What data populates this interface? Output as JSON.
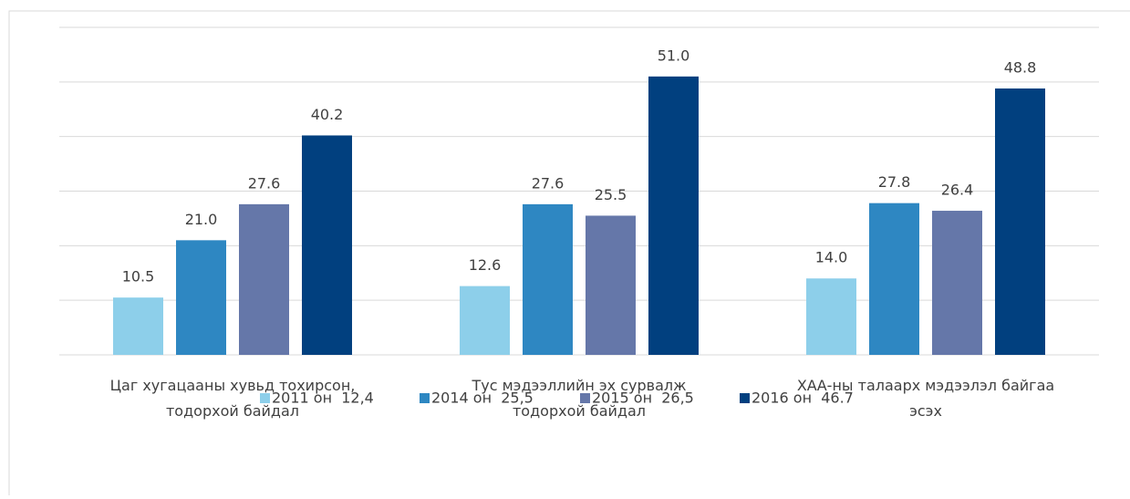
{
  "chart_data": {
    "type": "bar",
    "categories": [
      "Цаг хугацааны хувьд тохирсон,\nтодорхой байдал",
      "Тус мэдээллийн эх сурвалж\nтодорхой байдал",
      "ХАА-ны талаарх мэдээлэл байгаа\nэсэх"
    ],
    "series": [
      {
        "name": "2011 он  12,4",
        "color": "#8dcfea",
        "values": [
          10.5,
          12.6,
          14.0
        ],
        "value_labels": [
          "10.5",
          "12.6",
          "14.0"
        ]
      },
      {
        "name": "2014 он  25,5",
        "color": "#2e87c2",
        "values": [
          21.0,
          27.6,
          27.8
        ],
        "value_labels": [
          "21.0",
          "27.6",
          "27.8"
        ]
      },
      {
        "name": "2015 он  26,5",
        "color": "#6577a9",
        "values": [
          27.6,
          25.5,
          26.4
        ],
        "value_labels": [
          "27.6",
          "25.5",
          "26.4"
        ]
      },
      {
        "name": "2016 он  46.7",
        "color": "#01407f",
        "values": [
          40.2,
          51.0,
          48.8
        ],
        "value_labels": [
          "40.2",
          "51.0",
          "48.8"
        ]
      }
    ],
    "ylim": [
      0,
      60
    ],
    "yticks": [
      0,
      10,
      20,
      30,
      40,
      50,
      60
    ],
    "grid": true,
    "legend": "bottom"
  }
}
